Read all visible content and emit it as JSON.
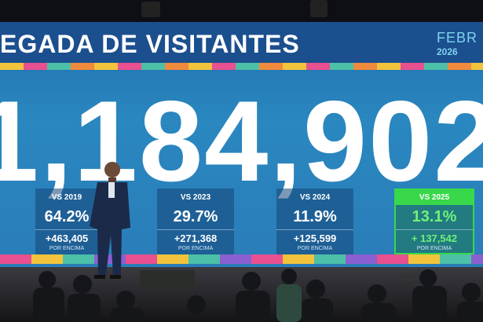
{
  "screen": {
    "title": "EGADA DE VISITANTES",
    "month": "FEBR",
    "year": "2026",
    "total": "1,184,902",
    "cards": [
      {
        "label": "VS 2019",
        "percent": "64.2%",
        "delta": "+463,405",
        "note": "POR ENCIMA"
      },
      {
        "label": "VS 2023",
        "percent": "29.7%",
        "delta": "+271,368",
        "note": "POR ENCIMA"
      },
      {
        "label": "VS 2024",
        "percent": "11.9%",
        "delta": "+125,599",
        "note": "POR ENCIMA"
      },
      {
        "label": "VS 2025",
        "percent": "13.1%",
        "delta": "+ 137,542",
        "note": "POR ENCIMA"
      }
    ]
  }
}
